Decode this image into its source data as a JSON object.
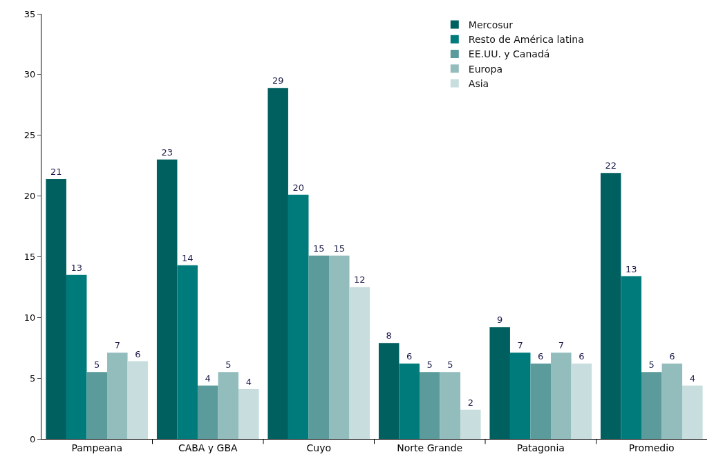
{
  "chart_data": {
    "type": "bar",
    "categories": [
      "Pampeana",
      "CABA y GBA",
      "Cuyo",
      "Norte Grande",
      "Patagonia",
      "Promedio"
    ],
    "series": [
      {
        "name": "Mercosur",
        "color": "#005f5f",
        "values": [
          21.4,
          23.0,
          28.9,
          7.9,
          9.2,
          21.9
        ],
        "value_labels": [
          "21",
          "23",
          "29",
          "8",
          "9",
          "22"
        ]
      },
      {
        "name": "Resto de América latina",
        "color": "#007b7b",
        "values": [
          13.5,
          14.3,
          20.1,
          6.2,
          7.1,
          13.4
        ],
        "value_labels": [
          "13",
          "14",
          "20",
          "6",
          "7",
          "13"
        ]
      },
      {
        "name": "EE.UU. y Canadá",
        "color": "#5b9b9b",
        "values": [
          5.5,
          4.4,
          15.1,
          5.5,
          6.2,
          5.5
        ],
        "value_labels": [
          "5",
          "4",
          "15",
          "5",
          "6",
          "5"
        ]
      },
      {
        "name": "Europa",
        "color": "#93bcbc",
        "values": [
          7.1,
          5.5,
          15.1,
          5.5,
          7.1,
          6.2
        ],
        "value_labels": [
          "7",
          "5",
          "15",
          "5",
          "7",
          "6"
        ]
      },
      {
        "name": "Asia",
        "color": "#c8dede",
        "values": [
          6.4,
          4.1,
          12.5,
          2.4,
          6.2,
          4.4
        ],
        "value_labels": [
          "6",
          "4",
          "12",
          "2",
          "6",
          "4"
        ]
      }
    ],
    "ylim": [
      0,
      35
    ],
    "yticks": [
      0,
      5,
      10,
      15,
      20,
      25,
      30,
      35
    ],
    "legend": "top right"
  }
}
